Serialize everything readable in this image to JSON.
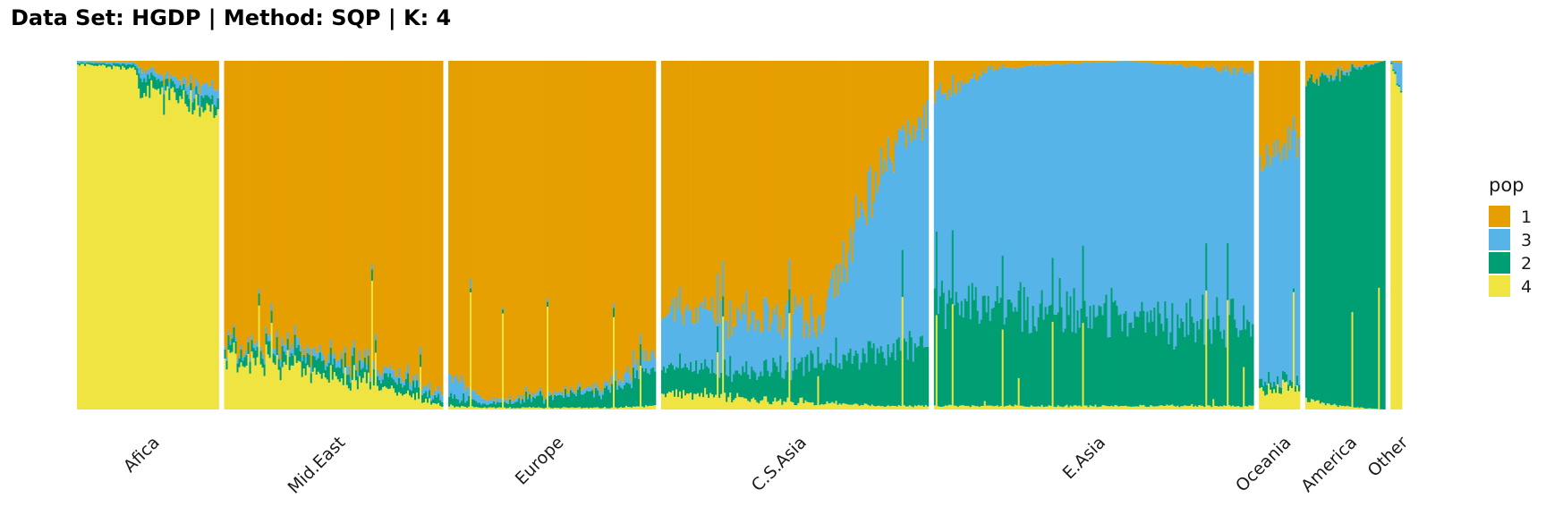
{
  "chart_data": {
    "type": "bar",
    "stacked": true,
    "normalized": true,
    "title": "Data Set: HGDP | Method: SQP | K: 4",
    "xlabel": "",
    "ylabel": "",
    "ylim": [
      0,
      1
    ],
    "grid": false,
    "legend": {
      "title": "pop",
      "position": "right",
      "entries": [
        {
          "key": "1",
          "label": "1",
          "color": "#E69F00"
        },
        {
          "key": "3",
          "label": "3",
          "color": "#56B4E9"
        },
        {
          "key": "2",
          "label": "2",
          "color": "#009E73"
        },
        {
          "key": "4",
          "label": "4",
          "color": "#F0E442"
        }
      ]
    },
    "stack_order": [
      "4",
      "2",
      "3",
      "1"
    ],
    "groups": [
      {
        "name": "Afica",
        "label": "Afica",
        "width": 1.49,
        "profile": [
          {
            "x": 0.0,
            "4": 0.99,
            "2": 0.005,
            "3": 0.005,
            "1": 0.0
          },
          {
            "x": 0.4,
            "4": 0.98,
            "2": 0.01,
            "3": 0.005,
            "1": 0.005
          },
          {
            "x": 0.45,
            "4": 0.92,
            "2": 0.04,
            "3": 0.02,
            "1": 0.02
          },
          {
            "x": 0.7,
            "4": 0.9,
            "2": 0.03,
            "3": 0.02,
            "1": 0.05
          },
          {
            "x": 1.0,
            "4": 0.85,
            "2": 0.03,
            "3": 0.04,
            "1": 0.08
          }
        ]
      },
      {
        "name": "Mid.East",
        "label": "Mid.East",
        "width": 2.3,
        "profile": [
          {
            "x": 0.0,
            "4": 0.16,
            "2": 0.03,
            "3": 0.01,
            "1": 0.8
          },
          {
            "x": 0.3,
            "4": 0.12,
            "2": 0.04,
            "3": 0.02,
            "1": 0.82
          },
          {
            "x": 0.7,
            "4": 0.07,
            "2": 0.04,
            "3": 0.02,
            "1": 0.87
          },
          {
            "x": 1.0,
            "4": 0.01,
            "2": 0.02,
            "3": 0.02,
            "1": 0.95
          }
        ]
      },
      {
        "name": "Europe",
        "label": "Europe",
        "width": 2.18,
        "profile": [
          {
            "x": 0.0,
            "4": 0.01,
            "2": 0.03,
            "3": 0.06,
            "1": 0.9
          },
          {
            "x": 0.2,
            "4": 0.005,
            "2": 0.01,
            "3": 0.01,
            "1": 0.975
          },
          {
            "x": 0.6,
            "4": 0.005,
            "2": 0.04,
            "3": 0.01,
            "1": 0.945
          },
          {
            "x": 0.8,
            "4": 0.005,
            "2": 0.06,
            "3": 0.02,
            "1": 0.915
          },
          {
            "x": 1.0,
            "4": 0.01,
            "2": 0.1,
            "3": 0.05,
            "1": 0.84
          }
        ]
      },
      {
        "name": "C.S.Asia",
        "label": "C.S.Asia",
        "width": 2.81,
        "profile": [
          {
            "x": 0.0,
            "4": 0.05,
            "2": 0.08,
            "3": 0.15,
            "1": 0.72
          },
          {
            "x": 0.3,
            "4": 0.03,
            "2": 0.07,
            "3": 0.16,
            "1": 0.74
          },
          {
            "x": 0.6,
            "4": 0.02,
            "2": 0.12,
            "3": 0.12,
            "1": 0.74
          },
          {
            "x": 0.83,
            "4": 0.01,
            "2": 0.15,
            "3": 0.55,
            "1": 0.29
          },
          {
            "x": 1.0,
            "4": 0.01,
            "2": 0.18,
            "3": 0.66,
            "1": 0.15
          }
        ]
      },
      {
        "name": "E.Asia",
        "label": "E.Asia",
        "width": 3.36,
        "profile": [
          {
            "x": 0.0,
            "4": 0.01,
            "2": 0.31,
            "3": 0.58,
            "1": 0.1
          },
          {
            "x": 0.2,
            "4": 0.01,
            "2": 0.28,
            "3": 0.69,
            "1": 0.02
          },
          {
            "x": 0.6,
            "4": 0.01,
            "2": 0.25,
            "3": 0.74,
            "1": 0.0
          },
          {
            "x": 1.0,
            "4": 0.01,
            "2": 0.22,
            "3": 0.74,
            "1": 0.03
          }
        ]
      },
      {
        "name": "Oceania",
        "label": "Oceania",
        "width": 0.43,
        "profile": [
          {
            "x": 0.0,
            "4": 0.06,
            "2": 0.03,
            "3": 0.63,
            "1": 0.28
          },
          {
            "x": 0.5,
            "4": 0.05,
            "2": 0.02,
            "3": 0.66,
            "1": 0.27
          },
          {
            "x": 1.0,
            "4": 0.06,
            "2": 0.02,
            "3": 0.7,
            "1": 0.22
          }
        ]
      },
      {
        "name": "America",
        "label": "America",
        "width": 0.84,
        "profile": [
          {
            "x": 0.0,
            "4": 0.03,
            "2": 0.9,
            "3": 0.0,
            "1": 0.07
          },
          {
            "x": 0.4,
            "4": 0.01,
            "2": 0.95,
            "3": 0.01,
            "1": 0.03
          },
          {
            "x": 1.0,
            "4": 0.0,
            "2": 1.0,
            "3": 0.0,
            "1": 0.0
          }
        ]
      },
      {
        "name": "Other",
        "label": "Other",
        "width": 0.12,
        "profile": [
          {
            "x": 0.0,
            "4": 0.99,
            "2": 0.005,
            "3": 0.005,
            "1": 0.0
          },
          {
            "x": 0.5,
            "4": 0.95,
            "2": 0.005,
            "3": 0.04,
            "1": 0.005
          },
          {
            "x": 1.0,
            "4": 0.92,
            "2": 0.005,
            "3": 0.07,
            "1": 0.005
          }
        ]
      }
    ]
  }
}
